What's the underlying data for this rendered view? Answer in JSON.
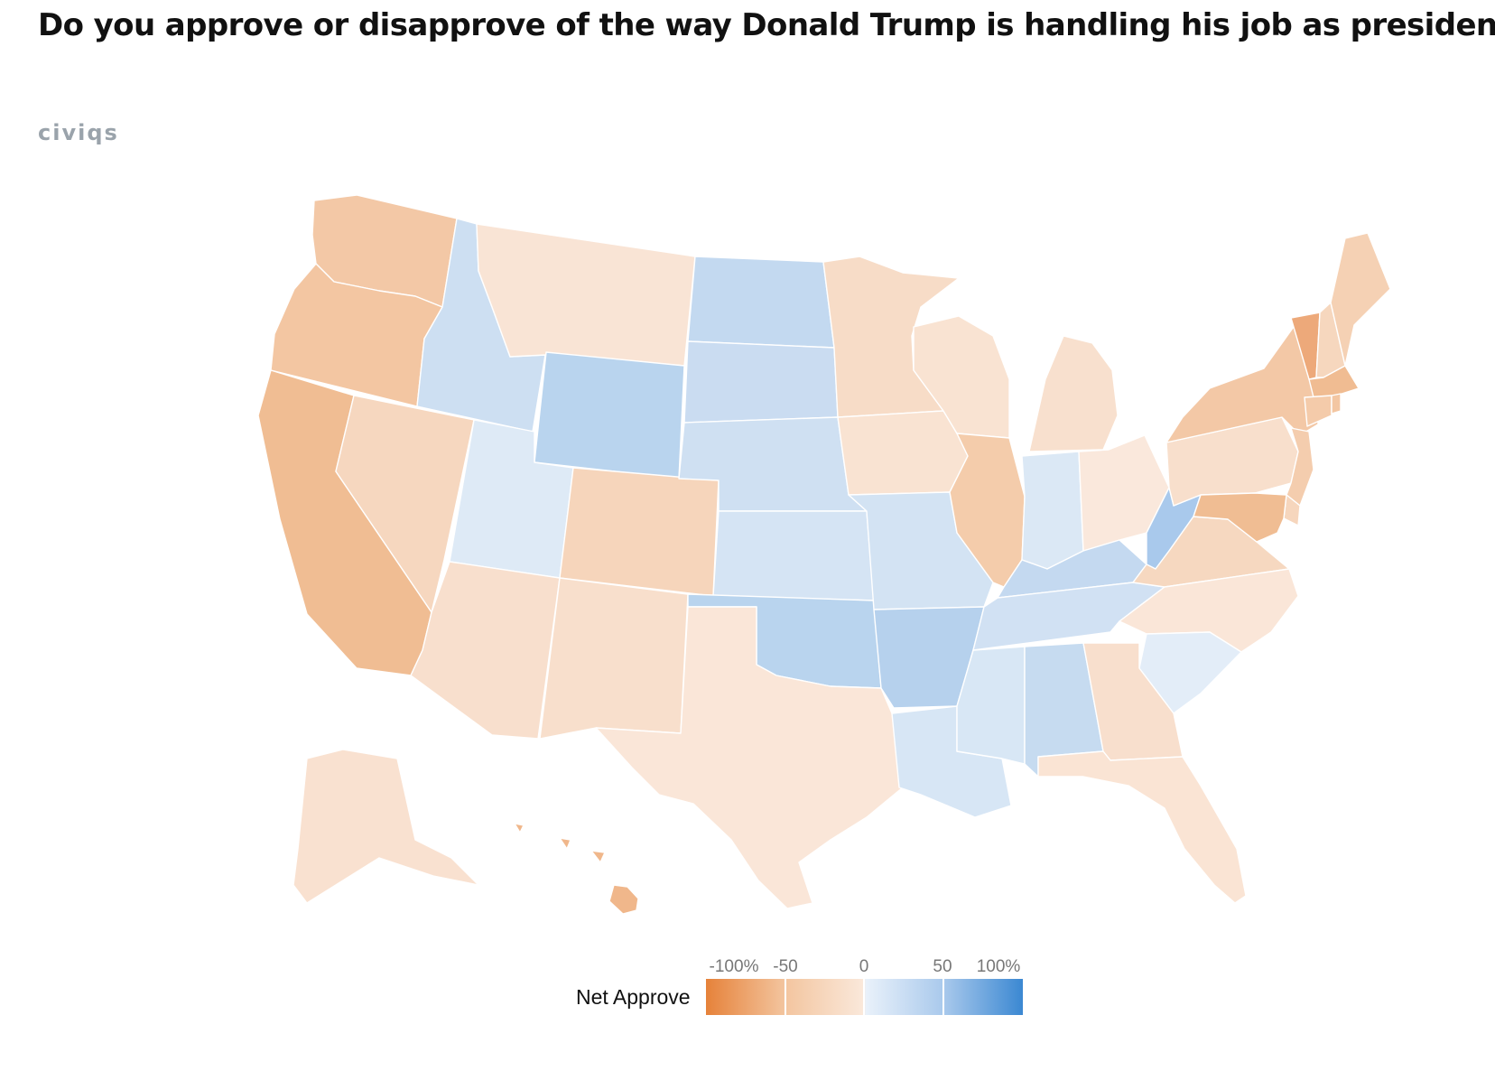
{
  "title": "Do you approve or disapprove of the way Donald Trump is handling his job as president?",
  "brand": "civiqs",
  "legend": {
    "label": "Net Approve",
    "ticks": [
      "-100%",
      "-50",
      "0",
      "50",
      "100%"
    ],
    "domain": [
      -100,
      100
    ],
    "colors": {
      "min": "#e6823a",
      "mid_negative": "#fae8da",
      "mid_positive": "#e9f1fa",
      "max": "#3b88d2"
    }
  },
  "map_data": {
    "type": "choropleth",
    "metric": "Net Approve",
    "region": "United States",
    "states": {
      "WA": {
        "color": "#f3c8a6"
      },
      "OR": {
        "color": "#f3c6a2"
      },
      "CA": {
        "color": "#f0bd93"
      },
      "NV": {
        "color": "#f6d7bf"
      },
      "ID": {
        "color": "#cddff2"
      },
      "MT": {
        "color": "#f9e4d5"
      },
      "WY": {
        "color": "#b9d4ee"
      },
      "UT": {
        "color": "#deeaf6"
      },
      "AZ": {
        "color": "#f8dfcd"
      },
      "CO": {
        "color": "#f6d5bb"
      },
      "NM": {
        "color": "#f8dfcc"
      },
      "ND": {
        "color": "#c3d9f0"
      },
      "SD": {
        "color": "#cadcf1"
      },
      "NE": {
        "color": "#cfe0f2"
      },
      "KS": {
        "color": "#d5e4f4"
      },
      "OK": {
        "color": "#b9d4ee"
      },
      "TX": {
        "color": "#fae6d8"
      },
      "MN": {
        "color": "#f7dcc7"
      },
      "IA": {
        "color": "#f9e3d2"
      },
      "MO": {
        "color": "#d3e3f3"
      },
      "AR": {
        "color": "#b6d1ed"
      },
      "LA": {
        "color": "#d7e6f5"
      },
      "WI": {
        "color": "#f9e3d2"
      },
      "IL": {
        "color": "#f4ccab"
      },
      "MI": {
        "color": "#f8e0ce"
      },
      "IN": {
        "color": "#dbe8f5"
      },
      "OH": {
        "color": "#fae8dc"
      },
      "KY": {
        "color": "#c4d9f0"
      },
      "TN": {
        "color": "#d1e1f3"
      },
      "MS": {
        "color": "#d8e7f5"
      },
      "AL": {
        "color": "#c6dbf0"
      },
      "WV": {
        "color": "#a9c9ec"
      },
      "VA": {
        "color": "#f6d8c0"
      },
      "NC": {
        "color": "#fae6d8"
      },
      "SC": {
        "color": "#e3edf8"
      },
      "GA": {
        "color": "#f8dfcd"
      },
      "FL": {
        "color": "#fae4d4"
      },
      "PA": {
        "color": "#f8dfcc"
      },
      "NY": {
        "color": "#f3c8a6"
      },
      "NJ": {
        "color": "#f4cdae"
      },
      "DE": {
        "color": "#f6d6bd"
      },
      "MD": {
        "color": "#f0bd93"
      },
      "VT": {
        "color": "#eda97a"
      },
      "NH": {
        "color": "#f6d7be"
      },
      "ME": {
        "color": "#f5d1b4"
      },
      "MA": {
        "color": "#f0bc92"
      },
      "CT": {
        "color": "#f4cbaa"
      },
      "RI": {
        "color": "#f3c6a2"
      },
      "AK": {
        "color": "#f9e1d0"
      },
      "HI": {
        "color": "#f0b78b"
      }
    }
  }
}
